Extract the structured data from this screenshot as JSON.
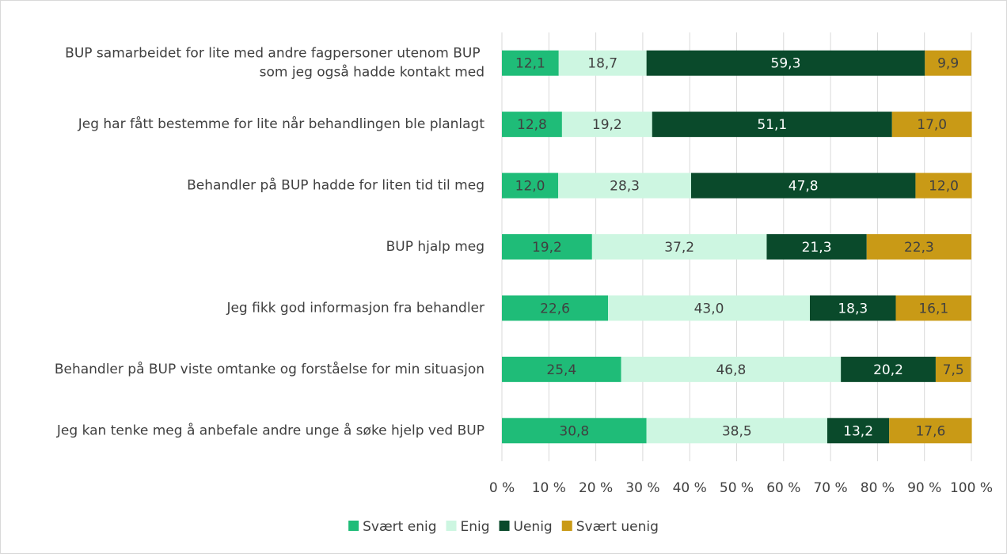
{
  "chart_data": {
    "type": "stacked_bar_horizontal",
    "categories": [
      "BUP samarbeidet for lite med andre fagpersoner utenom BUP som jeg også hadde kontakt med",
      "Jeg har fått bestemme for lite når behandlingen ble planlagt",
      "Behandler på BUP hadde for liten tid til meg",
      "BUP hjalp meg",
      "Jeg fikk god informasjon fra behandler",
      "Behandler på BUP viste omtanke og forståelse for min situasjon",
      "Jeg kan tenke meg å anbefale andre unge å søke hjelp ved BUP"
    ],
    "series": [
      {
        "name": "Svært enig",
        "color": "#1fbc78",
        "values": [
          12.1,
          12.8,
          12.0,
          19.2,
          22.6,
          25.4,
          30.8
        ],
        "value_labels": [
          "12,1",
          "12,8",
          "12,0",
          "19,2",
          "22,6",
          "25,4",
          "30,8"
        ]
      },
      {
        "name": "Enig",
        "color": "#cdf6e1",
        "values": [
          18.7,
          19.2,
          28.3,
          37.2,
          43.0,
          46.8,
          38.5
        ],
        "value_labels": [
          "18,7",
          "19,2",
          "28,3",
          "37,2",
          "43,0",
          "46,8",
          "38,5"
        ]
      },
      {
        "name": "Uenig",
        "color": "#0a4a2b",
        "values": [
          59.3,
          51.1,
          47.8,
          21.3,
          18.3,
          20.2,
          13.2
        ],
        "value_labels": [
          "59,3",
          "51,1",
          "47,8",
          "21,3",
          "18,3",
          "20,2",
          "13,2"
        ]
      },
      {
        "name": "Svært uenig",
        "color": "#c99a16",
        "values": [
          9.9,
          17.0,
          12.0,
          22.3,
          16.1,
          7.5,
          17.6
        ],
        "value_labels": [
          "9,9",
          "17,0",
          "12,0",
          "22,3",
          "16,1",
          "7,5",
          "17,6"
        ]
      }
    ],
    "xlim": [
      0,
      100
    ],
    "xticks": [
      {
        "value": 0,
        "label": "0 %"
      },
      {
        "value": 10,
        "label": "10 %"
      },
      {
        "value": 20,
        "label": "20 %"
      },
      {
        "value": 30,
        "label": "30 %"
      },
      {
        "value": 40,
        "label": "40 %"
      },
      {
        "value": 50,
        "label": "50 %"
      },
      {
        "value": 60,
        "label": "60 %"
      },
      {
        "value": 70,
        "label": "70 %"
      },
      {
        "value": 80,
        "label": "80 %"
      },
      {
        "value": 90,
        "label": "90 %"
      },
      {
        "value": 100,
        "label": "100 %"
      }
    ],
    "grid": true,
    "legend": "bottom"
  }
}
